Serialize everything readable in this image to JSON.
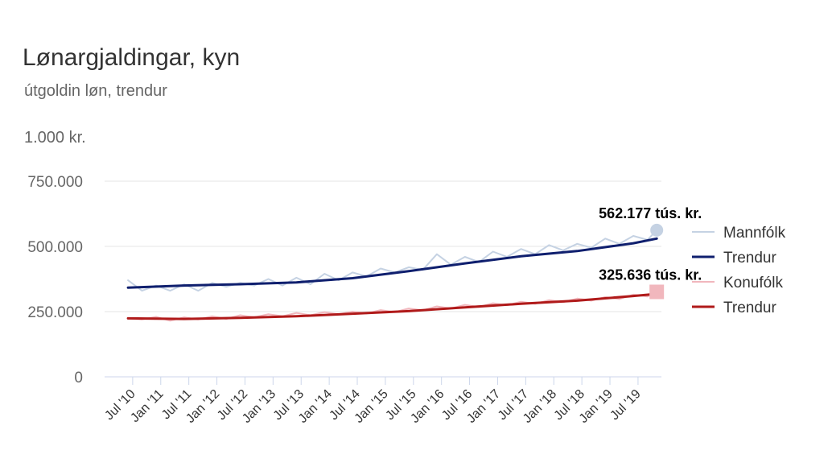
{
  "chart_data": {
    "type": "line",
    "title": "Lønargjaldingar, kyn",
    "subtitle": "útgoldin løn, trendur",
    "unit_label": "1.000 kr.",
    "ylim": [
      0,
      750000
    ],
    "yticks": [
      {
        "value": 0,
        "label": "0"
      },
      {
        "value": 250000,
        "label": "250.000"
      },
      {
        "value": 500000,
        "label": "500.000"
      },
      {
        "value": 750000,
        "label": "750.000"
      }
    ],
    "x_start": "2010-01",
    "x_end": "2019-12",
    "xticks": [
      {
        "date": "2010-07",
        "label": "Jul '10"
      },
      {
        "date": "2011-01",
        "label": "Jan '11"
      },
      {
        "date": "2011-07",
        "label": "Jul '11"
      },
      {
        "date": "2012-01",
        "label": "Jan '12"
      },
      {
        "date": "2012-07",
        "label": "Jul '12"
      },
      {
        "date": "2013-01",
        "label": "Jan '13"
      },
      {
        "date": "2013-07",
        "label": "Jul '13"
      },
      {
        "date": "2014-01",
        "label": "Jan '14"
      },
      {
        "date": "2014-07",
        "label": "Jul '14"
      },
      {
        "date": "2015-01",
        "label": "Jan '15"
      },
      {
        "date": "2015-07",
        "label": "Jul '15"
      },
      {
        "date": "2016-01",
        "label": "Jan '16"
      },
      {
        "date": "2016-07",
        "label": "Jul '16"
      },
      {
        "date": "2017-01",
        "label": "Jan '17"
      },
      {
        "date": "2017-07",
        "label": "Jul '17"
      },
      {
        "date": "2018-01",
        "label": "Jan '18"
      },
      {
        "date": "2018-07",
        "label": "Jul '18"
      },
      {
        "date": "2019-01",
        "label": "Jan '19"
      },
      {
        "date": "2019-07",
        "label": "Jul '19"
      }
    ],
    "series": [
      {
        "name": "Mannfólk",
        "color": "#c5d2e3",
        "kind": "raw",
        "points": [
          [
            "2010-06",
            370000
          ],
          [
            "2010-09",
            330000
          ],
          [
            "2010-12",
            350000
          ],
          [
            "2011-03",
            330000
          ],
          [
            "2011-06",
            355000
          ],
          [
            "2011-09",
            330000
          ],
          [
            "2011-12",
            360000
          ],
          [
            "2012-03",
            345000
          ],
          [
            "2012-06",
            360000
          ],
          [
            "2012-09",
            350000
          ],
          [
            "2012-12",
            375000
          ],
          [
            "2013-03",
            350000
          ],
          [
            "2013-06",
            380000
          ],
          [
            "2013-09",
            355000
          ],
          [
            "2013-12",
            395000
          ],
          [
            "2014-03",
            370000
          ],
          [
            "2014-06",
            400000
          ],
          [
            "2014-09",
            385000
          ],
          [
            "2014-12",
            415000
          ],
          [
            "2015-03",
            400000
          ],
          [
            "2015-06",
            420000
          ],
          [
            "2015-09",
            410000
          ],
          [
            "2015-12",
            470000
          ],
          [
            "2016-03",
            430000
          ],
          [
            "2016-06",
            460000
          ],
          [
            "2016-09",
            440000
          ],
          [
            "2016-12",
            480000
          ],
          [
            "2017-03",
            460000
          ],
          [
            "2017-06",
            490000
          ],
          [
            "2017-09",
            470000
          ],
          [
            "2017-12",
            505000
          ],
          [
            "2018-03",
            485000
          ],
          [
            "2018-06",
            510000
          ],
          [
            "2018-09",
            495000
          ],
          [
            "2018-12",
            530000
          ],
          [
            "2019-03",
            510000
          ],
          [
            "2019-06",
            540000
          ],
          [
            "2019-09",
            525000
          ],
          [
            "2019-11",
            562177
          ]
        ]
      },
      {
        "name": "Trendur",
        "color": "#0f1f6e",
        "kind": "trend",
        "points": [
          [
            "2010-06",
            342000
          ],
          [
            "2011-06",
            350000
          ],
          [
            "2012-06",
            355000
          ],
          [
            "2013-06",
            362000
          ],
          [
            "2014-06",
            378000
          ],
          [
            "2015-06",
            405000
          ],
          [
            "2016-06",
            435000
          ],
          [
            "2017-06",
            462000
          ],
          [
            "2018-06",
            482000
          ],
          [
            "2019-06",
            512000
          ],
          [
            "2019-11",
            530000
          ]
        ]
      },
      {
        "name": "Konufólk",
        "color": "#f1b7bd",
        "kind": "raw",
        "points": [
          [
            "2010-06",
            225000
          ],
          [
            "2010-09",
            220000
          ],
          [
            "2010-12",
            230000
          ],
          [
            "2011-03",
            215000
          ],
          [
            "2011-06",
            228000
          ],
          [
            "2011-09",
            220000
          ],
          [
            "2011-12",
            232000
          ],
          [
            "2012-03",
            222000
          ],
          [
            "2012-06",
            236000
          ],
          [
            "2012-09",
            228000
          ],
          [
            "2012-12",
            240000
          ],
          [
            "2013-03",
            232000
          ],
          [
            "2013-06",
            245000
          ],
          [
            "2013-09",
            236000
          ],
          [
            "2013-12",
            248000
          ],
          [
            "2014-03",
            240000
          ],
          [
            "2014-06",
            250000
          ],
          [
            "2014-09",
            243000
          ],
          [
            "2014-12",
            256000
          ],
          [
            "2015-03",
            248000
          ],
          [
            "2015-06",
            262000
          ],
          [
            "2015-09",
            255000
          ],
          [
            "2015-12",
            270000
          ],
          [
            "2016-03",
            262000
          ],
          [
            "2016-06",
            276000
          ],
          [
            "2016-09",
            268000
          ],
          [
            "2016-12",
            282000
          ],
          [
            "2017-03",
            274000
          ],
          [
            "2017-06",
            288000
          ],
          [
            "2017-09",
            280000
          ],
          [
            "2017-12",
            294000
          ],
          [
            "2018-03",
            286000
          ],
          [
            "2018-06",
            300000
          ],
          [
            "2018-09",
            292000
          ],
          [
            "2018-12",
            306000
          ],
          [
            "2019-03",
            298000
          ],
          [
            "2019-06",
            315000
          ],
          [
            "2019-09",
            308000
          ],
          [
            "2019-11",
            325636
          ]
        ]
      },
      {
        "name": "Trendur",
        "color": "#b01a1a",
        "kind": "trend",
        "points": [
          [
            "2010-06",
            224000
          ],
          [
            "2011-06",
            222000
          ],
          [
            "2012-06",
            226000
          ],
          [
            "2013-06",
            232000
          ],
          [
            "2014-06",
            242000
          ],
          [
            "2015-06",
            252000
          ],
          [
            "2016-06",
            266000
          ],
          [
            "2017-06",
            280000
          ],
          [
            "2018-06",
            292000
          ],
          [
            "2019-06",
            310000
          ],
          [
            "2019-11",
            318000
          ]
        ]
      }
    ],
    "annotations": [
      {
        "series": "Mannfólk",
        "date": "2019-11",
        "value": 562177,
        "label": "562.177 tús. kr.",
        "marker": "circle",
        "marker_color": "#c5d2e3"
      },
      {
        "series": "Konufólk",
        "date": "2019-11",
        "value": 325636,
        "label": "325.636 tús. kr.",
        "marker": "square",
        "marker_color": "#f1b7bd"
      }
    ],
    "legend": {
      "placement": "right",
      "items": [
        "Mannfólk",
        "Trendur",
        "Konufólk",
        "Trendur"
      ]
    }
  }
}
